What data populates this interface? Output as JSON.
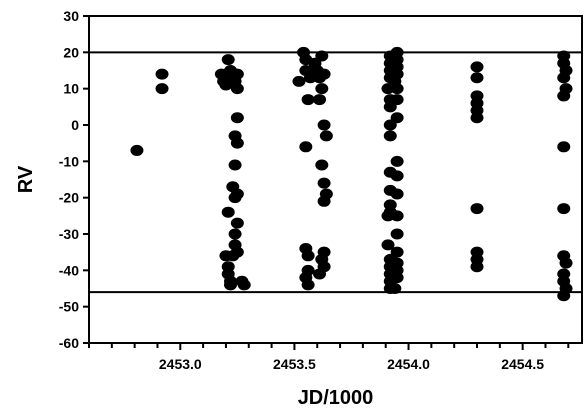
{
  "chart_data": {
    "type": "scatter",
    "title": "",
    "xlabel": "JD/1000",
    "ylabel": "RV",
    "xlim": [
      2452.6,
      2454.76
    ],
    "ylim": [
      -60,
      30
    ],
    "x_ticks": [
      2453.0,
      2453.5,
      2454.0,
      2454.5
    ],
    "x_tick_labels": [
      "2453.0",
      "2453.5",
      "2454.0",
      "2454.5"
    ],
    "y_ticks": [
      30,
      20,
      10,
      0,
      -10,
      -20,
      -30,
      -40,
      -50,
      -60
    ],
    "y_tick_labels": [
      "30",
      "20",
      "10",
      "0",
      "-10",
      "-20",
      "-30",
      "-40",
      "-50",
      "-60"
    ],
    "reference_lines_y": [
      20,
      -46
    ],
    "grid": false,
    "legend": "none",
    "marker_color": "#000000",
    "points": [
      [
        2452.81,
        -7
      ],
      [
        2452.92,
        14
      ],
      [
        2452.92,
        10
      ],
      [
        2453.18,
        14
      ],
      [
        2453.19,
        12
      ],
      [
        2453.2,
        11
      ],
      [
        2453.21,
        18
      ],
      [
        2453.22,
        15
      ],
      [
        2453.23,
        13
      ],
      [
        2453.24,
        12
      ],
      [
        2453.25,
        14
      ],
      [
        2453.25,
        10
      ],
      [
        2453.25,
        2
      ],
      [
        2453.24,
        -3
      ],
      [
        2453.25,
        -5
      ],
      [
        2453.24,
        -11
      ],
      [
        2453.23,
        -17
      ],
      [
        2453.25,
        -19
      ],
      [
        2453.24,
        -20
      ],
      [
        2453.21,
        -24
      ],
      [
        2453.25,
        -27
      ],
      [
        2453.24,
        -30
      ],
      [
        2453.24,
        -33
      ],
      [
        2453.25,
        -35
      ],
      [
        2453.23,
        -36
      ],
      [
        2453.2,
        -36
      ],
      [
        2453.21,
        -39
      ],
      [
        2453.21,
        -41
      ],
      [
        2453.22,
        -43
      ],
      [
        2453.22,
        -44
      ],
      [
        2453.27,
        -43
      ],
      [
        2453.28,
        -44
      ],
      [
        2453.52,
        12
      ],
      [
        2453.54,
        20
      ],
      [
        2453.55,
        18
      ],
      [
        2453.55,
        15
      ],
      [
        2453.57,
        13
      ],
      [
        2453.56,
        7
      ],
      [
        2453.55,
        -6
      ],
      [
        2453.59,
        17
      ],
      [
        2453.6,
        15
      ],
      [
        2453.61,
        13
      ],
      [
        2453.61,
        7
      ],
      [
        2453.62,
        19
      ],
      [
        2453.62,
        10
      ],
      [
        2453.63,
        14
      ],
      [
        2453.63,
        0
      ],
      [
        2453.64,
        -3
      ],
      [
        2453.62,
        -11
      ],
      [
        2453.63,
        -16
      ],
      [
        2453.64,
        -19
      ],
      [
        2453.63,
        -21
      ],
      [
        2453.55,
        -34
      ],
      [
        2453.56,
        -36
      ],
      [
        2453.56,
        -40
      ],
      [
        2453.55,
        -42
      ],
      [
        2453.56,
        -44
      ],
      [
        2453.63,
        -35
      ],
      [
        2453.62,
        -37
      ],
      [
        2453.63,
        -39
      ],
      [
        2453.61,
        -41
      ],
      [
        2453.92,
        19
      ],
      [
        2453.92,
        17
      ],
      [
        2453.92,
        15
      ],
      [
        2453.92,
        13
      ],
      [
        2453.91,
        10
      ],
      [
        2453.92,
        7
      ],
      [
        2453.92,
        5
      ],
      [
        2453.92,
        0
      ],
      [
        2453.92,
        -3
      ],
      [
        2453.92,
        -13
      ],
      [
        2453.92,
        -18
      ],
      [
        2453.92,
        -22
      ],
      [
        2453.92,
        -24
      ],
      [
        2453.91,
        -25
      ],
      [
        2453.91,
        -33
      ],
      [
        2453.92,
        -37
      ],
      [
        2453.92,
        -39
      ],
      [
        2453.92,
        -41
      ],
      [
        2453.92,
        -43
      ],
      [
        2453.92,
        -45
      ],
      [
        2453.95,
        20
      ],
      [
        2453.95,
        18
      ],
      [
        2453.95,
        16
      ],
      [
        2453.95,
        14
      ],
      [
        2453.94,
        12
      ],
      [
        2453.95,
        10
      ],
      [
        2453.95,
        7
      ],
      [
        2453.95,
        2
      ],
      [
        2453.95,
        -10
      ],
      [
        2453.95,
        -14
      ],
      [
        2453.95,
        -19
      ],
      [
        2453.95,
        -25
      ],
      [
        2453.95,
        -30
      ],
      [
        2453.95,
        -35
      ],
      [
        2453.95,
        -38
      ],
      [
        2453.95,
        -40
      ],
      [
        2453.95,
        -42
      ],
      [
        2453.94,
        -45
      ],
      [
        2454.3,
        16
      ],
      [
        2454.3,
        13
      ],
      [
        2454.3,
        8
      ],
      [
        2454.3,
        6
      ],
      [
        2454.3,
        4
      ],
      [
        2454.3,
        2
      ],
      [
        2454.3,
        -23
      ],
      [
        2454.3,
        -35
      ],
      [
        2454.3,
        -37
      ],
      [
        2454.3,
        -39
      ],
      [
        2454.68,
        19
      ],
      [
        2454.68,
        17
      ],
      [
        2454.69,
        15
      ],
      [
        2454.68,
        13
      ],
      [
        2454.69,
        10
      ],
      [
        2454.68,
        8
      ],
      [
        2454.68,
        -6
      ],
      [
        2454.68,
        -23
      ],
      [
        2454.68,
        -36
      ],
      [
        2454.69,
        -38
      ],
      [
        2454.68,
        -41
      ],
      [
        2454.68,
        -43
      ],
      [
        2454.69,
        -45
      ],
      [
        2454.68,
        -47
      ]
    ]
  }
}
